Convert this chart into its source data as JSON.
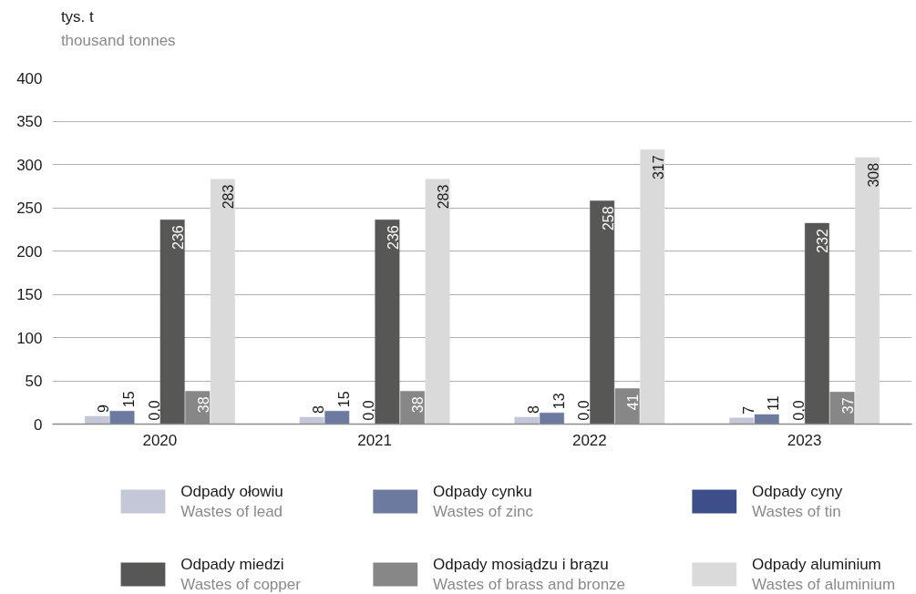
{
  "chart_data": {
    "type": "bar",
    "ylabel": "tys. t\nthousand tonnes",
    "categories": [
      "2020",
      "2021",
      "2022",
      "2023"
    ],
    "series": [
      {
        "name": "Odpady ołowiu\nWastes of lead",
        "color": "#c4c7d8",
        "values": [
          9,
          8,
          8,
          7
        ],
        "value_labels": [
          "9",
          "8",
          "8",
          "7"
        ]
      },
      {
        "name": "Odpady cynku\nWastes of zinc",
        "color": "#6d7aa0",
        "values": [
          15,
          15,
          13,
          11
        ],
        "value_labels": [
          "15",
          "15",
          "13",
          "11"
        ]
      },
      {
        "name": "Odpady cyny\nWastes of tin",
        "color": "#3c4f8a",
        "values": [
          0,
          0,
          0,
          0
        ],
        "value_labels": [
          "0,0",
          "0,0",
          "0,0",
          "0,0"
        ]
      },
      {
        "name": "Odpady miedzi\nWastes of copper",
        "color": "#575756",
        "values": [
          236,
          236,
          258,
          232
        ],
        "value_labels": [
          "236",
          "236",
          "258",
          "232"
        ]
      },
      {
        "name": "Odpady mosiądzu i brązu\nWastes of brass and bronze",
        "color": "#878787",
        "values": [
          38,
          38,
          41,
          37
        ],
        "value_labels": [
          "38",
          "38",
          "41",
          "37"
        ]
      },
      {
        "name": "Odpady aluminium\nWastes of aluminium",
        "color": "#dadada",
        "values": [
          283,
          283,
          317,
          308
        ],
        "value_labels": [
          "283",
          "283",
          "317",
          "308"
        ]
      }
    ],
    "ylim": [
      0,
      400
    ],
    "yticks": [
      0,
      50,
      100,
      150,
      200,
      250,
      300,
      350,
      400
    ],
    "grid": "y",
    "legend": "bottom"
  }
}
